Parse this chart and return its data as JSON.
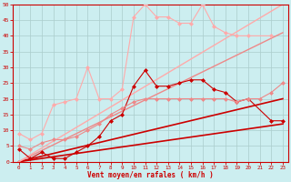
{
  "background_color": "#cceef0",
  "grid_color": "#aacccc",
  "xlabel": "Vent moyen/en rafales ( km/h )",
  "xlabel_color": "#cc0000",
  "tick_color": "#cc0000",
  "axis_color": "#cc0000",
  "xlim": [
    -0.5,
    23.5
  ],
  "ylim": [
    0,
    50
  ],
  "yticks": [
    0,
    5,
    10,
    15,
    20,
    25,
    30,
    35,
    40,
    45,
    50
  ],
  "xticks": [
    0,
    1,
    2,
    3,
    4,
    5,
    6,
    7,
    8,
    9,
    10,
    11,
    12,
    13,
    14,
    15,
    16,
    17,
    18,
    19,
    20,
    21,
    22,
    23
  ],
  "lines": [
    {
      "x": [
        0,
        1,
        2,
        3,
        4,
        5,
        6,
        7,
        8,
        9,
        10,
        11,
        12,
        13,
        14,
        15,
        16,
        17,
        18,
        19,
        20,
        22,
        23
      ],
      "y": [
        4,
        1,
        3,
        1,
        1,
        3,
        5,
        8,
        13,
        15,
        24,
        29,
        24,
        24,
        25,
        26,
        26,
        23,
        22,
        19,
        20,
        13,
        13
      ],
      "color": "#cc0000",
      "marker": "D",
      "lw": 0.8,
      "ms": 2.0
    },
    {
      "x": [
        0,
        1,
        2,
        3,
        4,
        5,
        6,
        7,
        8,
        9,
        10,
        11,
        12,
        13,
        14,
        15,
        16,
        17,
        18,
        19,
        20,
        21,
        22,
        23
      ],
      "y": [
        5,
        4,
        6,
        7,
        7,
        8,
        10,
        12,
        15,
        17,
        19,
        20,
        20,
        20,
        20,
        20,
        20,
        20,
        20,
        19,
        20,
        20,
        22,
        25
      ],
      "color": "#ee8888",
      "marker": "D",
      "lw": 0.8,
      "ms": 2.0
    },
    {
      "x": [
        0,
        1,
        2,
        3,
        4,
        5,
        6,
        7,
        8,
        9,
        10,
        11,
        12,
        13,
        14,
        15,
        16,
        17,
        18,
        19,
        20,
        22
      ],
      "y": [
        9,
        7,
        9,
        18,
        19,
        20,
        30,
        20,
        20,
        23,
        46,
        50,
        46,
        46,
        44,
        44,
        50,
        43,
        41,
        40,
        40,
        40
      ],
      "color": "#ffaaaa",
      "marker": "D",
      "lw": 0.8,
      "ms": 2.0
    },
    {
      "x": [
        0,
        23
      ],
      "y": [
        0,
        12
      ],
      "color": "#cc0000",
      "marker": null,
      "lw": 1.2,
      "ms": 0
    },
    {
      "x": [
        0,
        23
      ],
      "y": [
        0,
        20
      ],
      "color": "#cc0000",
      "marker": null,
      "lw": 1.2,
      "ms": 0
    },
    {
      "x": [
        0,
        23
      ],
      "y": [
        0,
        41
      ],
      "color": "#ee8888",
      "marker": null,
      "lw": 1.0,
      "ms": 0
    },
    {
      "x": [
        0,
        23
      ],
      "y": [
        0,
        50
      ],
      "color": "#ffaaaa",
      "marker": null,
      "lw": 1.0,
      "ms": 0
    }
  ]
}
